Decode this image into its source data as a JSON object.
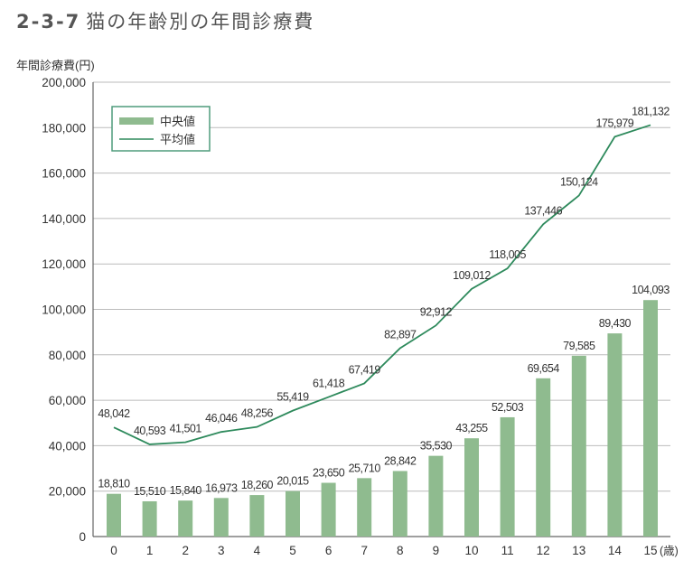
{
  "title_number": "2-3-7",
  "title_text": "猫の年齢別の年間診療費",
  "colors": {
    "bar": "#8fbb8f",
    "line": "#2e8a5c",
    "legend_border": "#4f9c7c",
    "grid": "#bbbbbb"
  },
  "chart_data": {
    "type": "bar+line",
    "ylabel": "年間診療費(円)",
    "xunit": "(歳)",
    "ylim": [
      0,
      200000
    ],
    "yticks": [
      "0",
      "20,000",
      "40,000",
      "60,000",
      "80,000",
      "100,000",
      "120,000",
      "140,000",
      "160,000",
      "180,000",
      "200,000"
    ],
    "grid": true,
    "legend": "top-left",
    "categories": [
      "0",
      "1",
      "2",
      "3",
      "4",
      "5",
      "6",
      "7",
      "8",
      "9",
      "10",
      "11",
      "12",
      "13",
      "14",
      "15"
    ],
    "series": [
      {
        "name": "中央値",
        "type": "bar",
        "values": [
          18810,
          15510,
          15840,
          16973,
          18260,
          20015,
          23650,
          25710,
          28842,
          35530,
          43255,
          52503,
          69654,
          79585,
          89430,
          104093
        ],
        "labels": [
          "18,810",
          "15,510",
          "15,840",
          "16,973",
          "18,260",
          "20,015",
          "23,650",
          "25,710",
          "28,842",
          "35,530",
          "43,255",
          "52,503",
          "69,654",
          "79,585",
          "89,430",
          "104,093"
        ]
      },
      {
        "name": "平均値",
        "type": "line",
        "values": [
          48042,
          40593,
          41501,
          46046,
          48256,
          55419,
          61418,
          67419,
          82897,
          92912,
          109012,
          118005,
          137446,
          150124,
          175979,
          181132
        ],
        "labels": [
          "48,042",
          "40,593",
          "41,501",
          "46,046",
          "48,256",
          "55,419",
          "61,418",
          "67,419",
          "82,897",
          "92,912",
          "109,012",
          "118,005",
          "137,446",
          "150,124",
          "175,979",
          "181,132"
        ]
      }
    ]
  }
}
